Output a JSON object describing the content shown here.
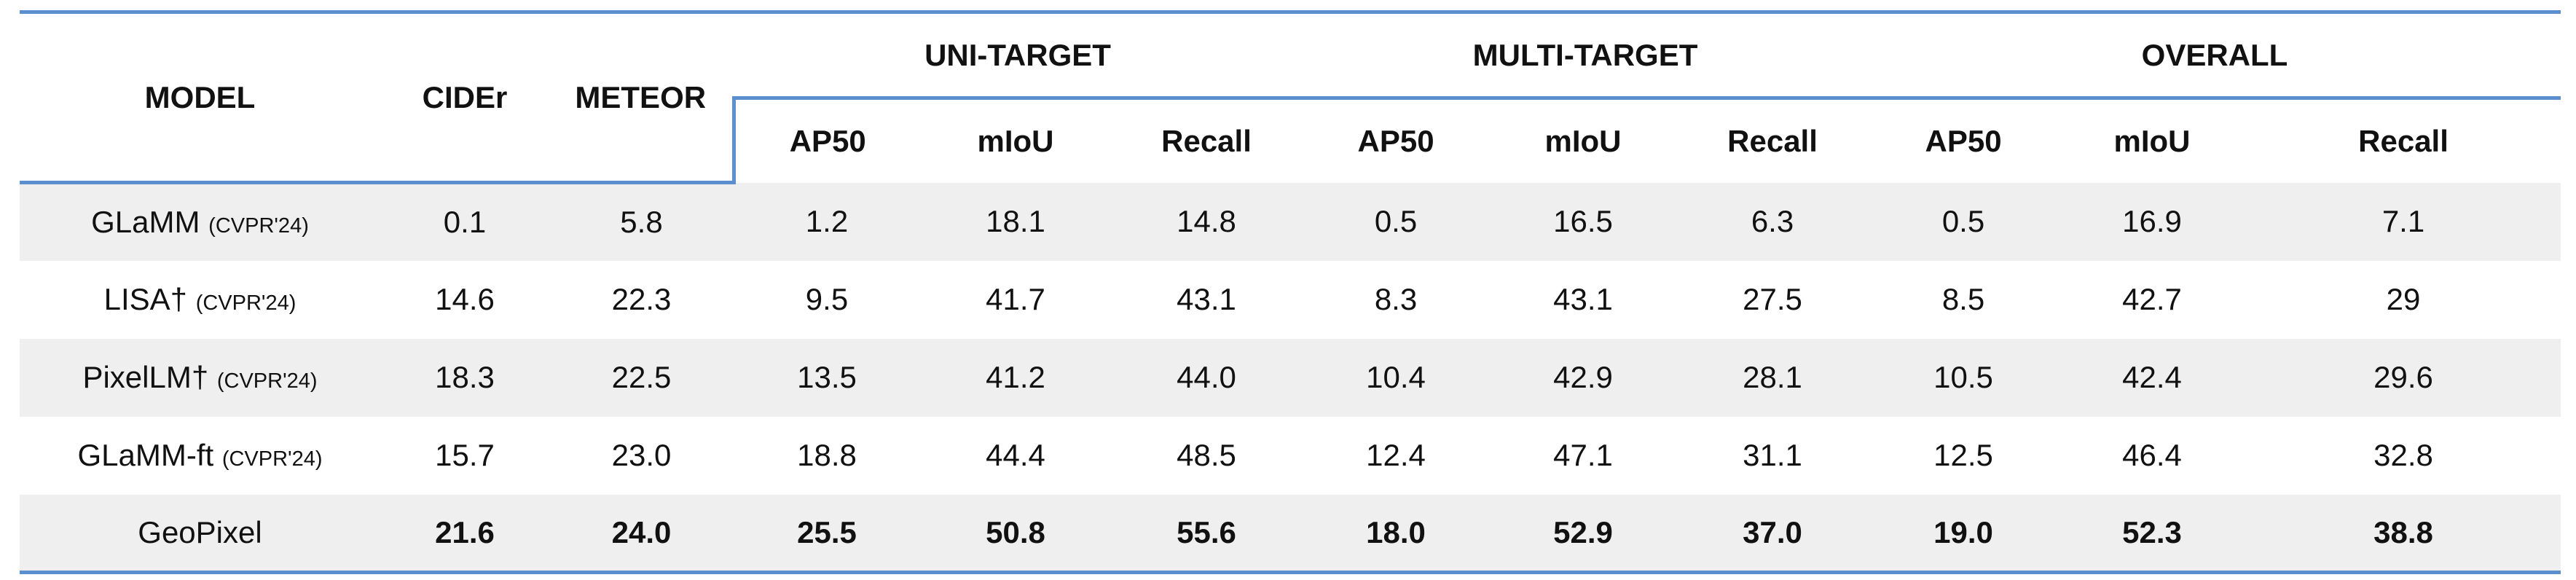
{
  "header": {
    "model": "MODEL",
    "cider": "CIDEr",
    "meteor": "METEOR",
    "groups": [
      "UNI-TARGET",
      "MULTI-TARGET",
      "OVERALL"
    ],
    "sub": [
      "AP50",
      "mIoU",
      "Recall",
      "AP50",
      "mIoU",
      "Recall",
      "AP50",
      "mIoU",
      "Recall"
    ]
  },
  "rows": [
    {
      "name": "GLaMM",
      "pub": "(CVPR'24)",
      "cells": [
        "0.1",
        "5.8",
        "1.2",
        "18.1",
        "14.8",
        "0.5",
        "16.5",
        "6.3",
        "0.5",
        "16.9",
        "7.1"
      ]
    },
    {
      "name": "LISA†",
      "pub": "(CVPR'24)",
      "cells": [
        "14.6",
        "22.3",
        "9.5",
        "41.7",
        "43.1",
        "8.3",
        "43.1",
        "27.5",
        "8.5",
        "42.7",
        "29"
      ]
    },
    {
      "name": "PixelLM†",
      "pub": "(CVPR'24)",
      "cells": [
        "18.3",
        "22.5",
        "13.5",
        "41.2",
        "44.0",
        "10.4",
        "42.9",
        "28.1",
        "10.5",
        "42.4",
        "29.6"
      ]
    },
    {
      "name": "GLaMM-ft",
      "pub": "(CVPR'24)",
      "cells": [
        "15.7",
        "23.0",
        "18.8",
        "44.4",
        "48.5",
        "12.4",
        "47.1",
        "31.1",
        "12.5",
        "46.4",
        "32.8"
      ]
    },
    {
      "name": "GeoPixel",
      "pub": "",
      "cells": [
        "21.6",
        "24.0",
        "25.5",
        "50.8",
        "55.6",
        "18.0",
        "52.9",
        "37.0",
        "19.0",
        "52.3",
        "38.8"
      ]
    }
  ]
}
